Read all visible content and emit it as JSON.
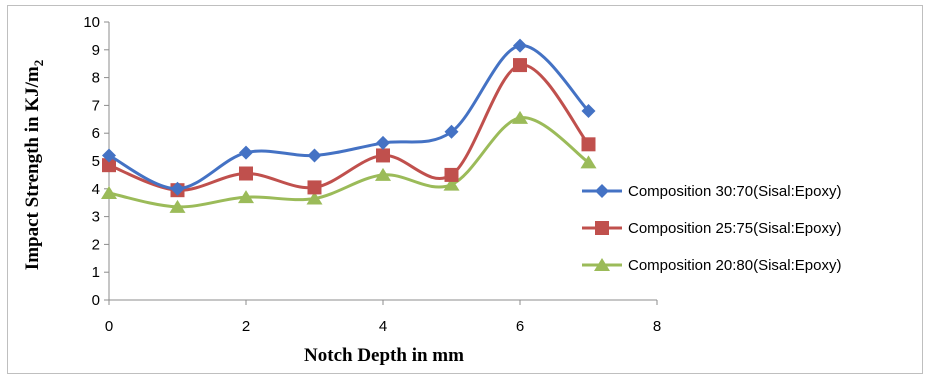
{
  "chart_data": {
    "type": "line",
    "smooth": true,
    "title": "",
    "xlabel": "Notch Depth in mm",
    "ylabel": "Impact Strength in KJ/m",
    "ylabel_subscript": "2",
    "xlim": [
      0,
      8
    ],
    "ylim": [
      0,
      10
    ],
    "xticks": [
      0,
      2,
      4,
      6,
      8
    ],
    "yticks": [
      0,
      1,
      2,
      3,
      4,
      5,
      6,
      7,
      8,
      9,
      10
    ],
    "grid": false,
    "legend_position": "right",
    "x": [
      0,
      1,
      2,
      3,
      4,
      5,
      6,
      7
    ],
    "series": [
      {
        "name": "Composition 30:70(Sisal:Epoxy)",
        "color": "#4472c4",
        "marker": "diamond",
        "values": [
          5.2,
          4.0,
          5.3,
          5.2,
          5.65,
          6.05,
          9.15,
          6.8
        ]
      },
      {
        "name": "Composition 25:75(Sisal:Epoxy)",
        "color": "#c0504d",
        "marker": "square",
        "values": [
          4.85,
          3.95,
          4.55,
          4.05,
          5.2,
          4.5,
          8.45,
          5.6
        ]
      },
      {
        "name": "Composition 20:80(Sisal:Epoxy)",
        "color": "#9bbb59",
        "marker": "triangle",
        "values": [
          3.85,
          3.35,
          3.7,
          3.65,
          4.5,
          4.15,
          6.55,
          4.95
        ]
      }
    ]
  }
}
